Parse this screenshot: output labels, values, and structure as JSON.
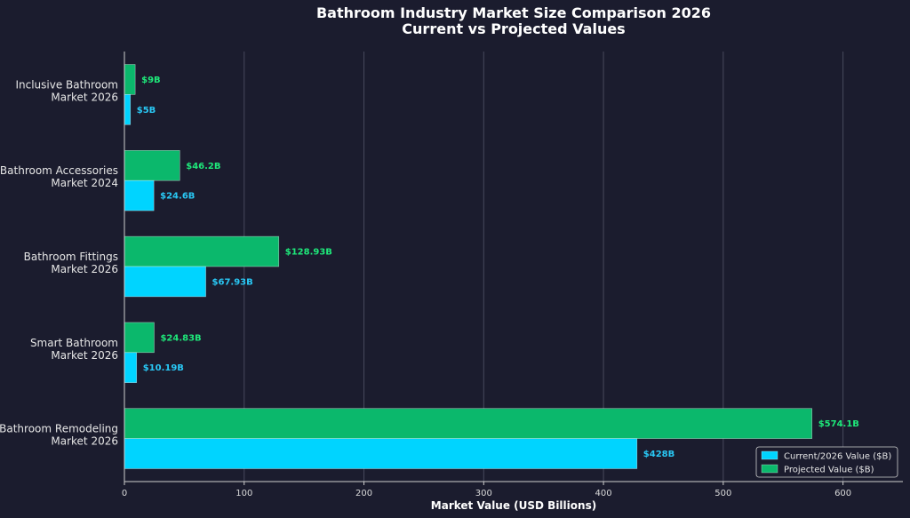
{
  "chart_data": {
    "type": "bar",
    "orientation": "horizontal",
    "title": "Bathroom Industry Market Size Comparison 2026",
    "subtitle": "Current vs Projected Values",
    "xlabel": "Market Value (USD Billions)",
    "ylabel": "",
    "xlim": [
      0,
      650
    ],
    "xticks": [
      "0",
      "100",
      "200",
      "300",
      "400",
      "500",
      "600"
    ],
    "grid": true,
    "legend_position": "bottom-right",
    "categories": [
      [
        "Inclusive Bathroom",
        "Market 2026"
      ],
      [
        "Bathroom Accessories",
        "Market 2024"
      ],
      [
        "Bathroom Fittings",
        "Market 2026"
      ],
      [
        "Smart Bathroom",
        "Market 2026"
      ],
      [
        "Bathroom Remodeling",
        "Market 2026"
      ]
    ],
    "series": [
      {
        "name": "Current/2026 Value ($B)",
        "color": "#00d4ff",
        "label_color": "#29c8f5",
        "values": [
          5,
          24.6,
          67.93,
          10.19,
          428
        ],
        "labels": [
          "$5B",
          "$24.6B",
          "$67.93B",
          "$10.19B",
          "$428B"
        ]
      },
      {
        "name": "Projected Value ($B)",
        "color": "#0bb86c",
        "label_color": "#1ee87a",
        "values": [
          9,
          46.2,
          128.93,
          24.83,
          574.1
        ],
        "labels": [
          "$9B",
          "$46.2B",
          "$128.93B",
          "$24.83B",
          "$574.1B"
        ]
      }
    ]
  }
}
